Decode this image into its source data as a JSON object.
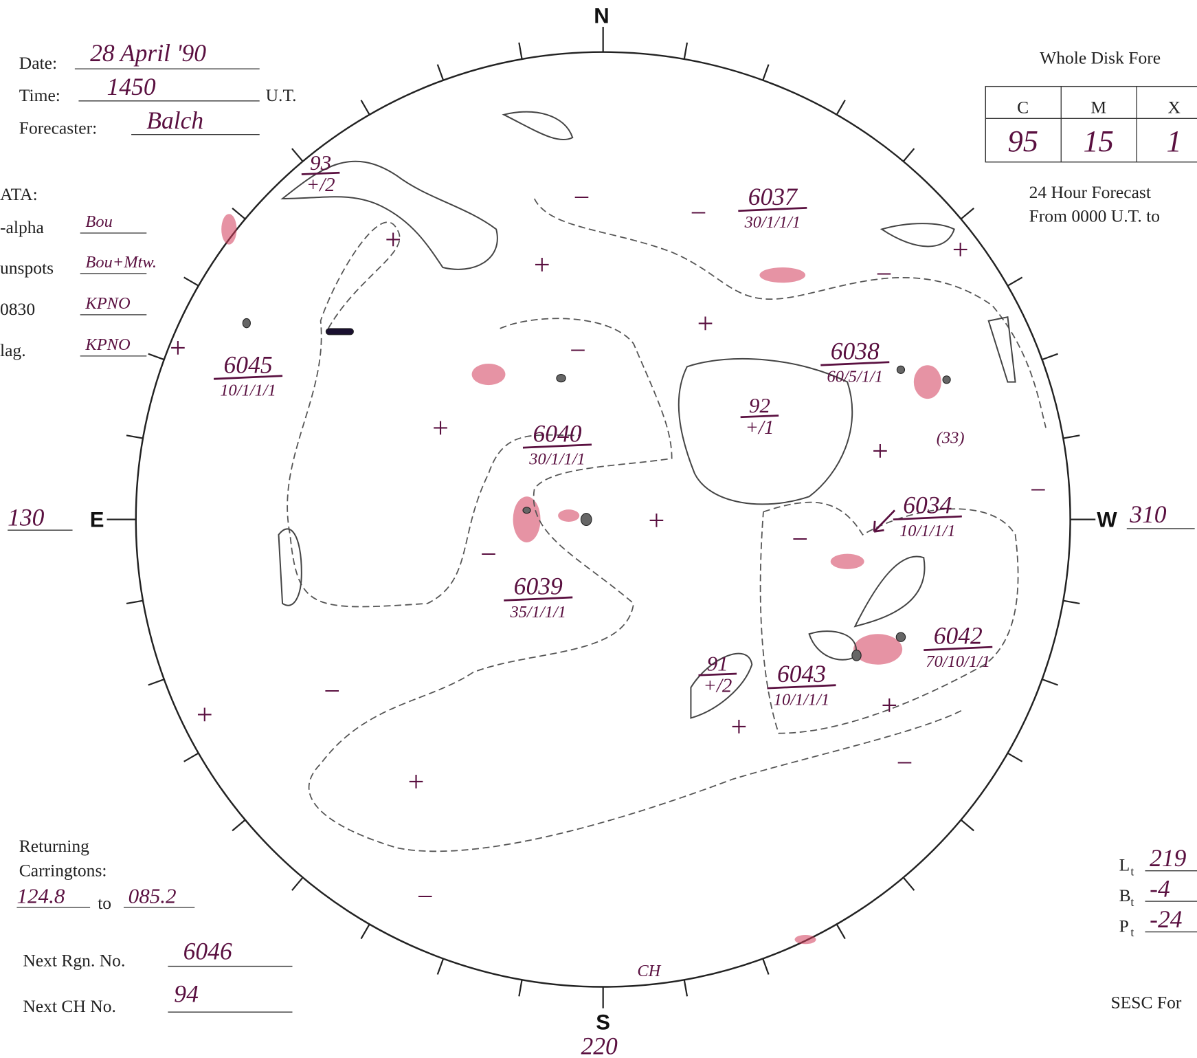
{
  "header": {
    "date_label": "Date:",
    "date": "28 April '90",
    "time_label": "Time:",
    "time": "1450",
    "time_unit": "U.T.",
    "forecaster_label": "Forecaster:",
    "forecaster": "Balch"
  },
  "data_sources": {
    "title": "ATA:",
    "rows": [
      {
        "label": "-alpha",
        "value": "Bou"
      },
      {
        "label": "unspots",
        "value": "Bou+Mtw."
      },
      {
        "label": "0830",
        "value": "KPNO"
      },
      {
        "label": "lag.",
        "value": "KPNO"
      }
    ]
  },
  "forecast": {
    "title": "Whole Disk Fore",
    "columns": [
      "C",
      "M",
      "X"
    ],
    "values": [
      "95",
      "15",
      "1"
    ],
    "note_line1": "24 Hour Forecast",
    "note_line2": "From 0000 U.T. to"
  },
  "compass": {
    "north": "N",
    "south": "S",
    "east": "E",
    "west": "W",
    "east_longitude": "130",
    "west_longitude": "310",
    "south_longitude": "220"
  },
  "regions": [
    {
      "number": "6037",
      "class": "30/1/1/1"
    },
    {
      "number": "6045",
      "class": "10/1/1/1"
    },
    {
      "number": "6040",
      "class": "30/1/1/1"
    },
    {
      "number": "6038",
      "class": "60/5/1/1"
    },
    {
      "number": "6034",
      "class": "10/1/1/1"
    },
    {
      "number": "6039",
      "class": "35/1/1/1"
    },
    {
      "number": "6042",
      "class": "70/10/1/1"
    },
    {
      "number": "6043",
      "class": "10/1/1/1"
    }
  ],
  "coronal_holes": [
    {
      "number": "93",
      "polarity": "+/2"
    },
    {
      "number": "92",
      "polarity": "+/1"
    },
    {
      "number": "91",
      "polarity": "+/2"
    }
  ],
  "annotations": [
    "(33)",
    "CH"
  ],
  "polarity_marks": [
    "+",
    "+",
    "−",
    "−",
    "−",
    "+",
    "+",
    "−",
    "+",
    "+",
    "+",
    "−",
    "+",
    "−",
    "−",
    "−",
    "+",
    "+",
    "+",
    "−",
    "+",
    "−"
  ],
  "carrington": {
    "title_line1": "Returning",
    "title_line2": "Carringtons:",
    "from": "124.8",
    "to_label": "to",
    "to": "085.2"
  },
  "next": {
    "region_label": "Next Rgn. No.",
    "region": "6046",
    "ch_label": "Next CH No.",
    "ch": "94"
  },
  "ephemeris": [
    {
      "symbol": "L",
      "subscript": "t",
      "value": "219"
    },
    {
      "symbol": "B",
      "subscript": "t",
      "value": "-4"
    },
    {
      "symbol": "P",
      "subscript": "t",
      "value": "-24"
    }
  ],
  "footer": "SESC For"
}
